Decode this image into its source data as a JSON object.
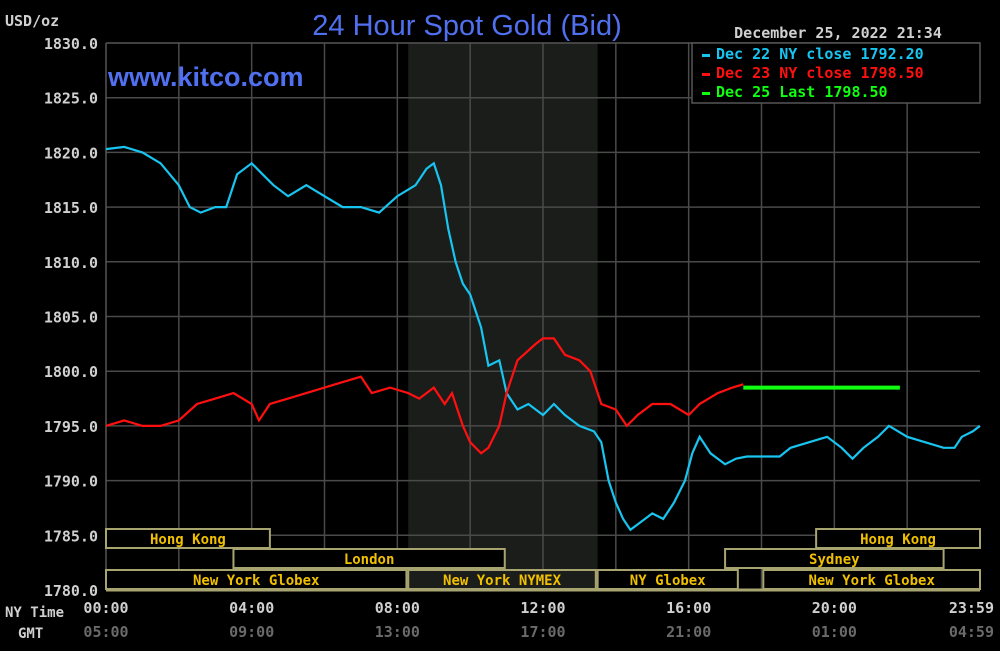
{
  "chart_data": {
    "type": "line",
    "title": "24 Hour Spot Gold (Bid)",
    "watermark": "www.kitco.com",
    "timestamp": "December 25, 2022 21:34",
    "ylabel": "USD/oz",
    "ylim": [
      1780,
      1830
    ],
    "yticks": [
      "1830.0",
      "1825.0",
      "1820.0",
      "1815.0",
      "1810.0",
      "1805.0",
      "1800.0",
      "1795.0",
      "1790.0",
      "1785.0",
      "1780.0"
    ],
    "xlim_hours": [
      0,
      24
    ],
    "x_row_labels": {
      "ny": "NY Time",
      "gmt": "GMT"
    },
    "xticks": [
      {
        "h": 0,
        "ny": "00:00",
        "gmt": "05:00"
      },
      {
        "h": 4,
        "ny": "04:00",
        "gmt": "09:00"
      },
      {
        "h": 8,
        "ny": "08:00",
        "gmt": "13:00"
      },
      {
        "h": 12,
        "ny": "12:00",
        "gmt": "17:00"
      },
      {
        "h": 16,
        "ny": "16:00",
        "gmt": "21:00"
      },
      {
        "h": 20,
        "ny": "20:00",
        "gmt": "01:00"
      },
      {
        "h": 23.98,
        "ny": "23:59",
        "gmt": "04:59"
      }
    ],
    "grid": true,
    "shaded_hours": [
      8.3,
      13.5
    ],
    "legend_position": "top-right",
    "series": [
      {
        "name": "Dec 22 NY close 1792.20",
        "color": "#18c4f0",
        "x": [
          0,
          0.5,
          1,
          1.5,
          2,
          2.3,
          2.6,
          3,
          3.3,
          3.6,
          4,
          4.3,
          4.6,
          5,
          5.5,
          6,
          6.5,
          7,
          7.5,
          8,
          8.5,
          8.8,
          9,
          9.2,
          9.4,
          9.6,
          9.8,
          10,
          10.3,
          10.5,
          10.8,
          11,
          11.3,
          11.6,
          12,
          12.3,
          12.6,
          13,
          13.4,
          13.6,
          13.8,
          14,
          14.2,
          14.4,
          14.8,
          15,
          15.3,
          15.6,
          15.9,
          16.1,
          16.3,
          16.6,
          17,
          17.3,
          17.6,
          18.5,
          18.8,
          19.3,
          19.8,
          20.2,
          20.5,
          20.8,
          21.2,
          21.5,
          22,
          22.5,
          23,
          23.3,
          23.5,
          23.8,
          24
        ],
        "y": [
          1820.3,
          1820.5,
          1820,
          1819,
          1817,
          1815,
          1814.5,
          1815,
          1815,
          1818,
          1819,
          1818,
          1817,
          1816,
          1817,
          1816,
          1815,
          1815,
          1814.5,
          1816,
          1817,
          1818.5,
          1819,
          1817,
          1813,
          1810,
          1808,
          1807,
          1804,
          1800.5,
          1801,
          1798,
          1796.5,
          1797,
          1796,
          1797,
          1796,
          1795,
          1794.5,
          1793.5,
          1790,
          1788,
          1786.5,
          1785.5,
          1786.5,
          1787,
          1786.5,
          1788,
          1790,
          1792.5,
          1794,
          1792.5,
          1791.5,
          1792,
          1792.2,
          1792.2,
          1793,
          1793.5,
          1794,
          1793,
          1792,
          1793,
          1794,
          1795,
          1794,
          1793.5,
          1793,
          1793,
          1794,
          1794.5,
          1795
        ]
      },
      {
        "name": "Dec 23 NY close 1798.50",
        "color": "#ff1010",
        "x": [
          0,
          0.5,
          1,
          1.5,
          2,
          2.5,
          3,
          3.5,
          4,
          4.2,
          4.5,
          5,
          5.5,
          6,
          6.5,
          7,
          7.3,
          7.8,
          8.3,
          8.6,
          9,
          9.3,
          9.5,
          9.8,
          10,
          10.3,
          10.5,
          10.8,
          11,
          11.3,
          11.8,
          12,
          12.3,
          12.6,
          13,
          13.3,
          13.6,
          14,
          14.3,
          14.6,
          15,
          15.5,
          16,
          16.3,
          16.8,
          17.2,
          17.5
        ],
        "y": [
          1795,
          1795.5,
          1795,
          1795,
          1795.5,
          1797,
          1797.5,
          1798,
          1797,
          1795.5,
          1797,
          1797.5,
          1798,
          1798.5,
          1799,
          1799.5,
          1798,
          1798.5,
          1798,
          1797.5,
          1798.5,
          1797,
          1798,
          1795,
          1793.5,
          1792.5,
          1793,
          1795,
          1798,
          1801,
          1802.5,
          1803,
          1803,
          1801.5,
          1801,
          1800,
          1797,
          1796.5,
          1795,
          1796,
          1797,
          1797,
          1796,
          1797,
          1798,
          1798.5,
          1798.8
        ]
      },
      {
        "name": "Dec 25 Last 1798.50",
        "color": "#10ff10",
        "x": [
          17.5,
          21.8
        ],
        "y": [
          1798.5,
          1798.5
        ]
      }
    ],
    "sessions": [
      {
        "label": "Hong Kong",
        "row": 0,
        "start": 0,
        "end": 4.5
      },
      {
        "label": "Hong Kong",
        "row": 0,
        "end": 24,
        "start": 19.5
      },
      {
        "label": "London",
        "row": 1,
        "start": 3.5,
        "end": 10.95
      },
      {
        "label": "Sydney",
        "row": 1,
        "start": 17,
        "end": 23
      },
      {
        "label": "New York Globex",
        "row": 2,
        "start": 0,
        "end": 8.25
      },
      {
        "label": "New York NYMEX",
        "row": 2,
        "start": 8.3,
        "end": 13.45
      },
      {
        "label": "NY Globex",
        "row": 2,
        "start": 13.5,
        "end": 17.35
      },
      {
        "label": "New York Globex",
        "row": 2,
        "start": 18.05,
        "end": 24
      }
    ]
  }
}
